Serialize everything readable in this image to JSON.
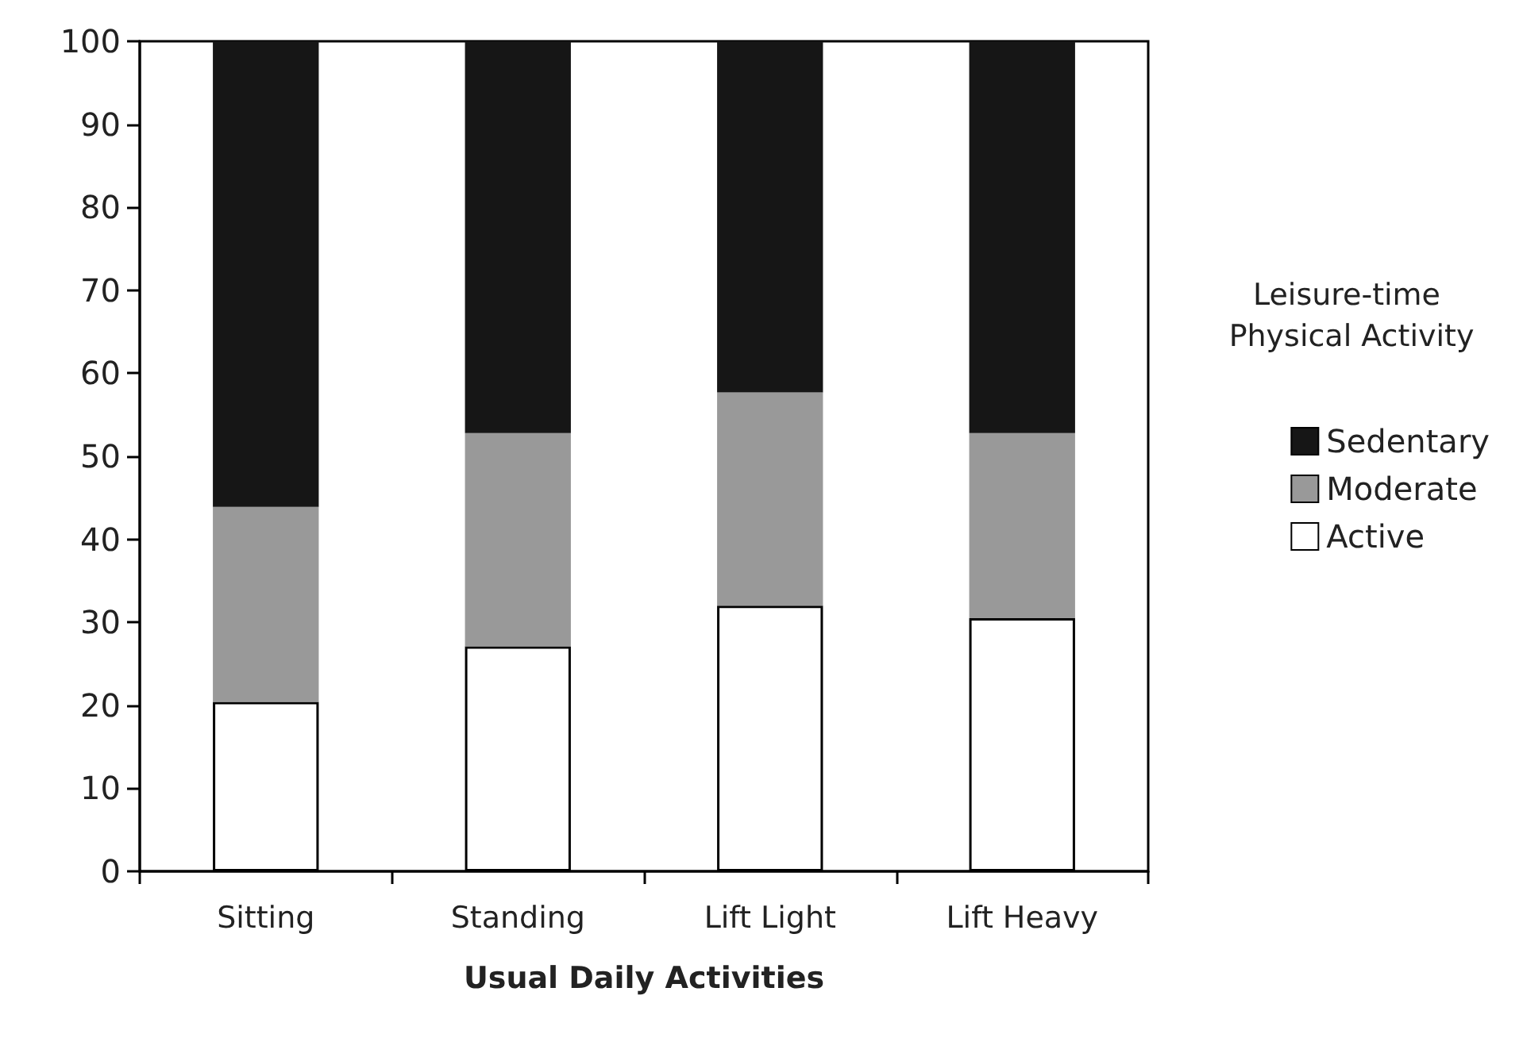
{
  "chart_data": {
    "type": "bar",
    "stacked": true,
    "xlabel": "Usual Daily Activities",
    "legend_title": "Leisure-time Physical Activity",
    "legend": "right",
    "categories": [
      "Sitting",
      "Standing",
      "Lift Light",
      "Lift Heavy"
    ],
    "series": [
      {
        "name": "Active",
        "color": "#ffffff",
        "values": [
          20.4,
          27.1,
          32,
          30.5
        ]
      },
      {
        "name": "Moderate",
        "color": "#999999",
        "values": [
          23.5,
          25.7,
          25.7,
          22.3
        ]
      },
      {
        "name": "Sedentary",
        "color": "#161616",
        "values": [
          56.1,
          47.2,
          42.3,
          47.2
        ]
      }
    ],
    "ylim": [
      0,
      100
    ],
    "yticks": [
      0,
      10,
      20,
      30,
      40,
      50,
      60,
      70,
      80,
      90,
      100
    ],
    "grid": false
  }
}
